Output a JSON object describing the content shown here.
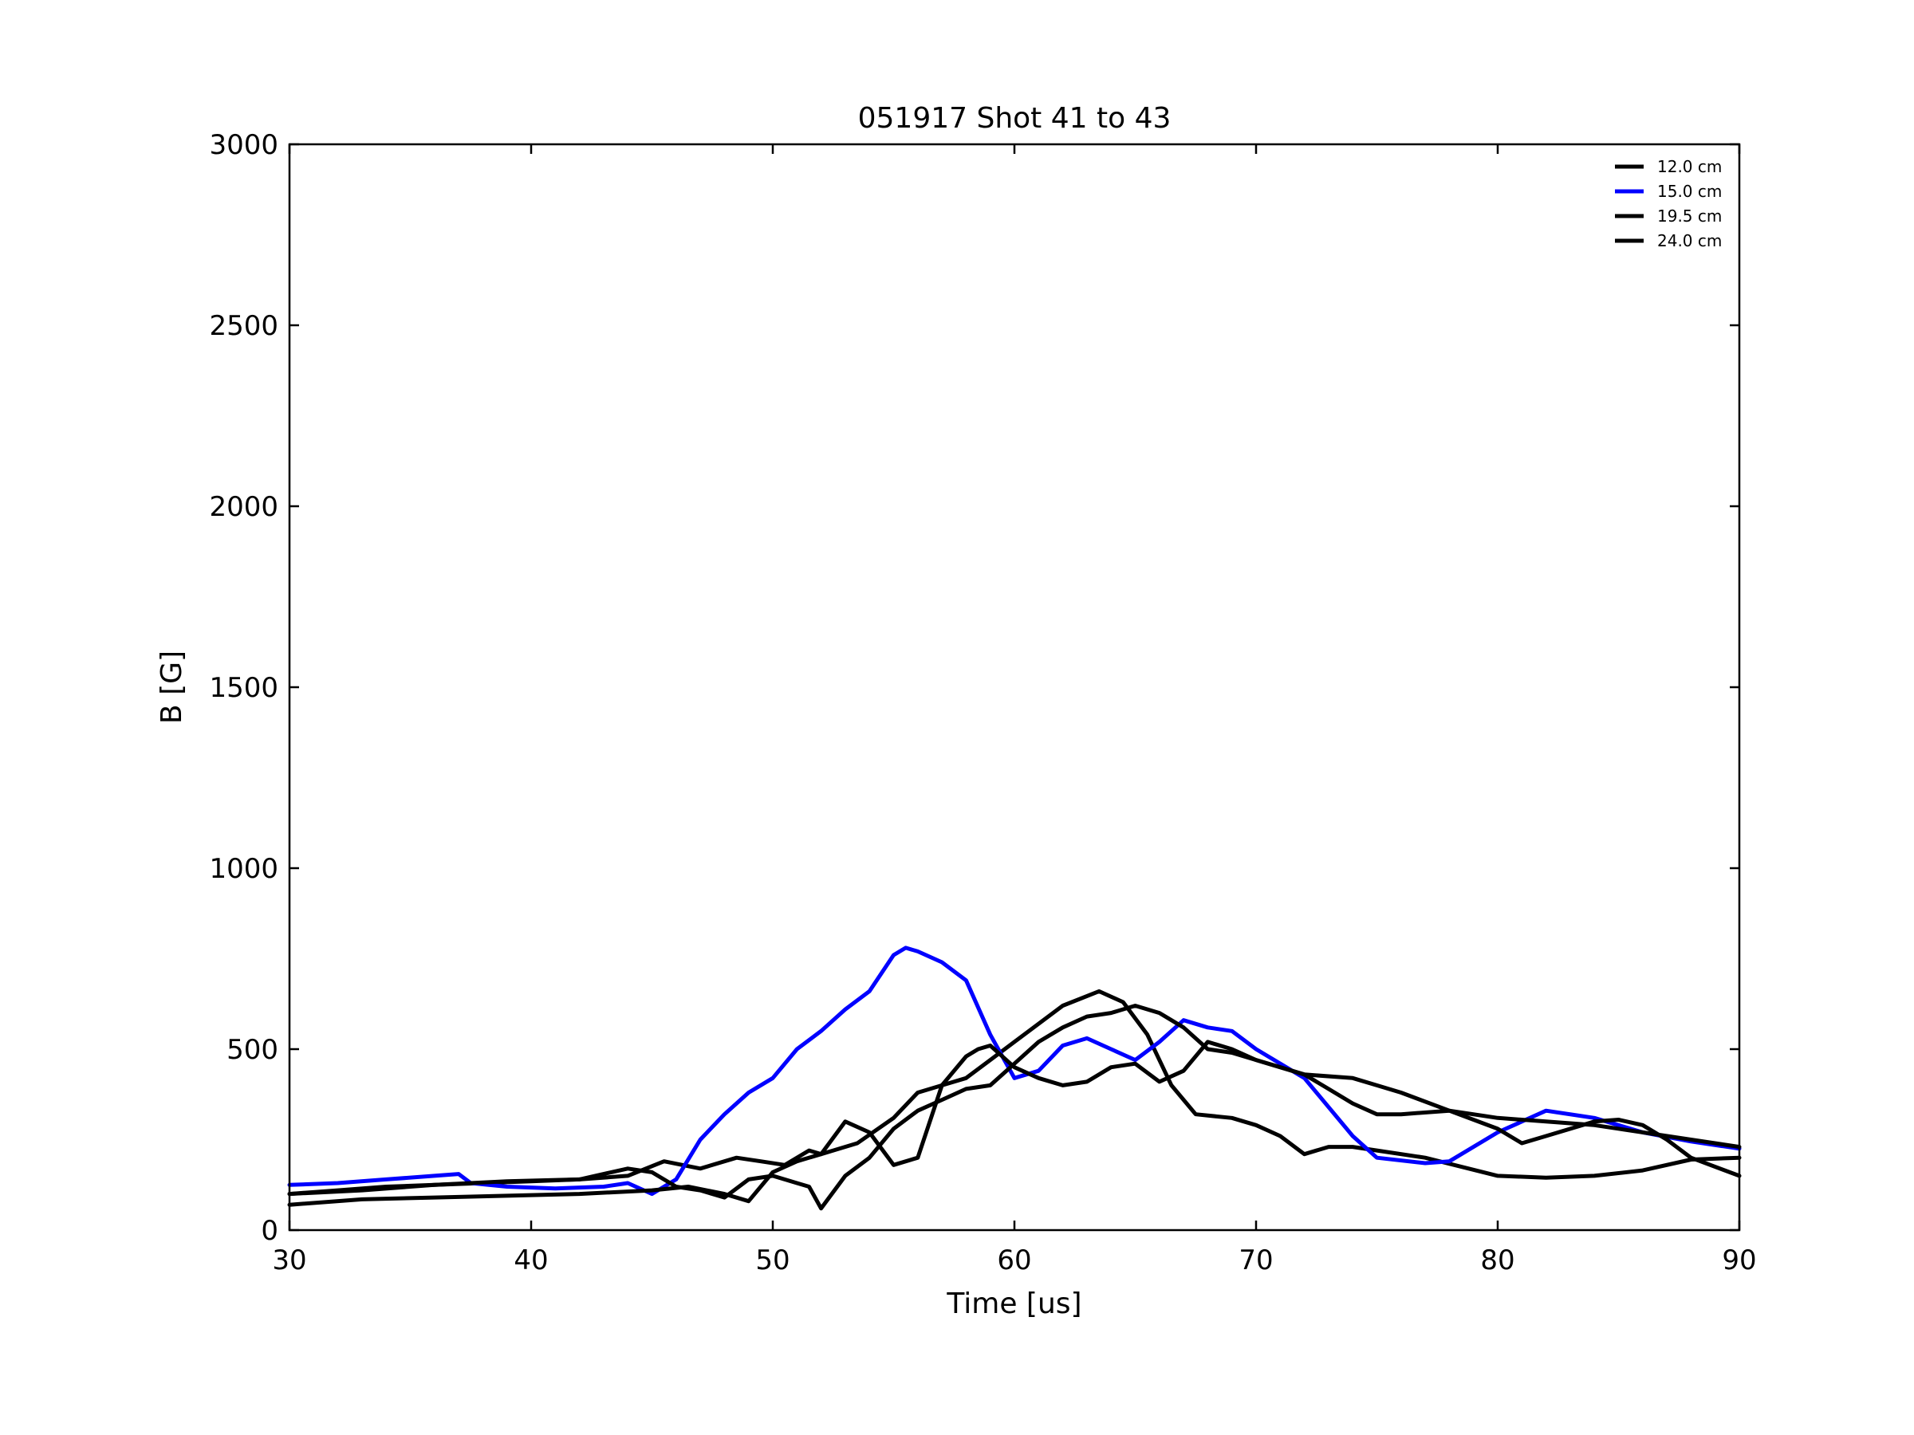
{
  "chart_data": {
    "type": "line",
    "title": "051917 Shot 41 to 43",
    "xlabel": "Time [us]",
    "ylabel": "B [G]",
    "xlim": [
      30,
      90
    ],
    "ylim": [
      0,
      3000
    ],
    "xticks": [
      30,
      40,
      50,
      60,
      70,
      80,
      90
    ],
    "yticks": [
      0,
      500,
      1000,
      1500,
      2000,
      2500,
      3000
    ],
    "grid": false,
    "legend_position": "top-right",
    "series": [
      {
        "name": "12.0 cm",
        "color": "#000000",
        "x": [
          30,
          32,
          34,
          36,
          38,
          40,
          42,
          44,
          45.5,
          47,
          48.5,
          49.5,
          50.5,
          51.5,
          52,
          52.5,
          53.5,
          55,
          56,
          57,
          58,
          59,
          60,
          62,
          63.5,
          64.5,
          65.5,
          66.5,
          67.5,
          69,
          70,
          71,
          72,
          73,
          74,
          75,
          77,
          80,
          82,
          84,
          86,
          88,
          90
        ],
        "y": [
          100,
          110,
          120,
          125,
          130,
          135,
          140,
          150,
          190,
          170,
          200,
          190,
          180,
          220,
          210,
          220,
          240,
          310,
          380,
          400,
          420,
          470,
          520,
          620,
          660,
          630,
          540,
          400,
          320,
          310,
          290,
          260,
          210,
          230,
          230,
          220,
          200,
          150,
          145,
          150,
          165,
          195,
          200
        ]
      },
      {
        "name": "15.0 cm",
        "color": "#0000ff",
        "x": [
          30,
          32,
          34,
          36,
          37,
          37.5,
          39,
          41,
          43,
          44,
          45,
          46,
          47,
          48,
          49,
          50,
          51,
          52,
          53,
          54,
          55,
          55.5,
          56,
          57,
          58,
          59,
          60,
          61,
          62,
          63,
          64,
          65,
          66,
          67,
          68,
          69,
          70,
          72,
          74,
          75,
          77,
          78,
          80,
          82,
          84,
          86,
          88,
          90
        ],
        "y": [
          125,
          130,
          140,
          150,
          155,
          130,
          120,
          115,
          120,
          130,
          100,
          140,
          250,
          320,
          380,
          420,
          500,
          550,
          610,
          660,
          760,
          780,
          770,
          740,
          690,
          540,
          420,
          440,
          510,
          530,
          500,
          470,
          520,
          580,
          560,
          550,
          500,
          420,
          260,
          200,
          185,
          190,
          270,
          330,
          310,
          270,
          245,
          225
        ]
      },
      {
        "name": "19.5 cm",
        "color": "#000000",
        "x": [
          30,
          33,
          36,
          39,
          42,
          45,
          46.5,
          48,
          49,
          50,
          51,
          52,
          53,
          54,
          55,
          56,
          57,
          58,
          58.5,
          59,
          60,
          61,
          62,
          63,
          64,
          65,
          66,
          67,
          68,
          69,
          70,
          71,
          72,
          73,
          74,
          75,
          76,
          78,
          80,
          81,
          82,
          84,
          85,
          86,
          87,
          88,
          90
        ],
        "y": [
          70,
          85,
          90,
          95,
          100,
          110,
          120,
          100,
          80,
          160,
          190,
          210,
          300,
          270,
          180,
          200,
          400,
          480,
          500,
          510,
          450,
          420,
          400,
          410,
          450,
          460,
          410,
          440,
          520,
          500,
          470,
          450,
          430,
          390,
          350,
          320,
          320,
          330,
          280,
          240,
          260,
          300,
          305,
          290,
          250,
          200,
          150
        ]
      },
      {
        "name": "24.0 cm",
        "color": "#000000",
        "x": [
          30,
          33,
          36,
          39,
          42,
          44,
          45,
          46,
          47,
          48,
          49,
          50,
          51,
          51.5,
          52,
          53,
          54,
          55,
          56,
          57,
          58,
          59,
          60,
          61,
          62,
          63,
          64,
          65,
          66,
          67,
          68,
          69,
          70,
          72,
          74,
          75,
          76,
          78,
          80,
          82,
          84,
          86,
          88,
          90
        ],
        "y": [
          100,
          110,
          125,
          135,
          140,
          170,
          160,
          120,
          110,
          90,
          140,
          150,
          130,
          120,
          60,
          150,
          200,
          280,
          330,
          360,
          390,
          400,
          460,
          520,
          560,
          590,
          600,
          620,
          600,
          560,
          500,
          490,
          470,
          430,
          420,
          400,
          380,
          330,
          310,
          300,
          290,
          270,
          250,
          230
        ]
      }
    ]
  }
}
